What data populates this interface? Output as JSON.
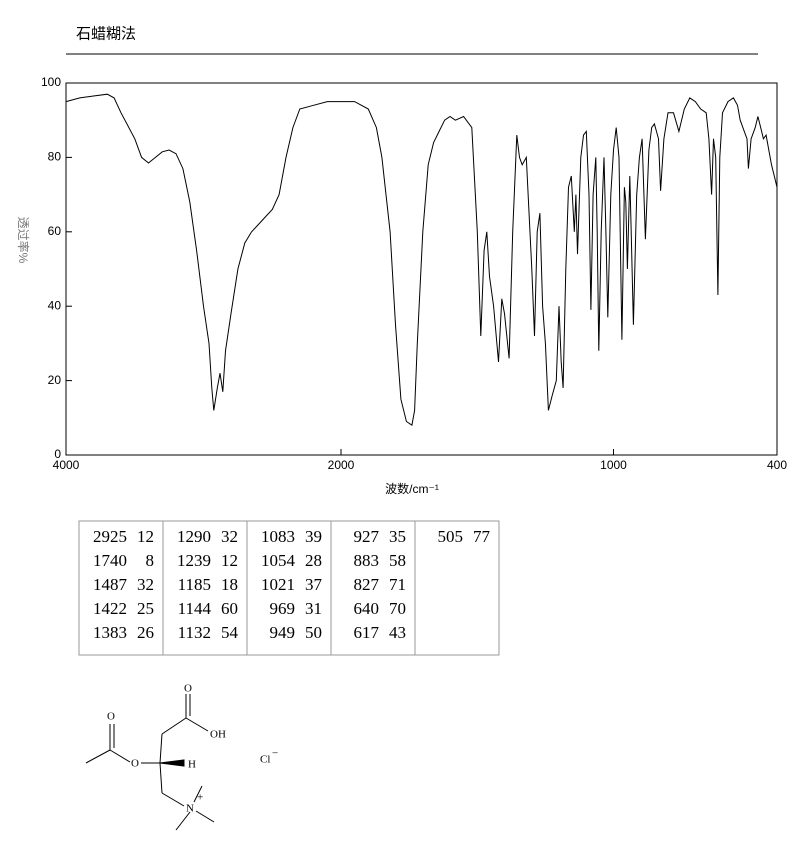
{
  "chart_data": {
    "type": "line",
    "title": "石蜡糊法",
    "x_label": "波数/cm⁻¹",
    "y_label": "透过率%",
    "xlim": [
      4000,
      400
    ],
    "ylim": [
      0,
      100
    ],
    "xticks": [
      4000,
      2000,
      1000,
      400
    ],
    "yticks": [
      0,
      20,
      40,
      60,
      80,
      100
    ],
    "x_scale_break": 2000,
    "color": "#000000",
    "x": [
      4000,
      3900,
      3800,
      3700,
      3650,
      3600,
      3500,
      3450,
      3400,
      3350,
      3300,
      3250,
      3200,
      3150,
      3100,
      3050,
      3000,
      2960,
      2940,
      2925,
      2900,
      2880,
      2860,
      2840,
      2800,
      2750,
      2700,
      2650,
      2600,
      2550,
      2500,
      2450,
      2400,
      2350,
      2300,
      2200,
      2100,
      2000,
      1950,
      1900,
      1870,
      1850,
      1820,
      1800,
      1780,
      1760,
      1740,
      1730,
      1720,
      1700,
      1680,
      1660,
      1640,
      1620,
      1600,
      1580,
      1550,
      1520,
      1500,
      1487,
      1475,
      1465,
      1455,
      1440,
      1422,
      1410,
      1400,
      1383,
      1370,
      1355,
      1345,
      1335,
      1320,
      1300,
      1290,
      1280,
      1270,
      1260,
      1250,
      1239,
      1225,
      1210,
      1200,
      1192,
      1185,
      1175,
      1165,
      1155,
      1144,
      1138,
      1132,
      1120,
      1110,
      1100,
      1090,
      1083,
      1075,
      1065,
      1060,
      1054,
      1045,
      1035,
      1028,
      1021,
      1010,
      1000,
      990,
      980,
      969,
      960,
      955,
      949,
      940,
      935,
      927,
      915,
      905,
      895,
      883,
      870,
      860,
      850,
      835,
      827,
      815,
      800,
      780,
      760,
      740,
      720,
      700,
      680,
      660,
      650,
      640,
      633,
      625,
      617,
      610,
      600,
      580,
      560,
      545,
      535,
      520,
      510,
      505,
      495,
      480,
      470,
      460,
      450,
      440,
      430,
      420,
      410,
      400
    ],
    "values": [
      95,
      96,
      96.5,
      97,
      96,
      92,
      85,
      80,
      78.5,
      80,
      81.5,
      82,
      81,
      77,
      68,
      55,
      40,
      30,
      18,
      12,
      18,
      22,
      17,
      28,
      38,
      50,
      57,
      60,
      62,
      64,
      66,
      70,
      80,
      88,
      93,
      94,
      95,
      95,
      95,
      93,
      88,
      80,
      60,
      35,
      15,
      9,
      8,
      12,
      30,
      60,
      78,
      84,
      87,
      90,
      91,
      90,
      91,
      88,
      60,
      32,
      55,
      60,
      48,
      40,
      25,
      42,
      38,
      26,
      60,
      86,
      80,
      78,
      80,
      50,
      32,
      60,
      65,
      40,
      30,
      12,
      16,
      20,
      40,
      25,
      18,
      50,
      72,
      75,
      60,
      70,
      54,
      80,
      86,
      87,
      70,
      39,
      70,
      80,
      60,
      28,
      60,
      80,
      60,
      37,
      70,
      82,
      88,
      80,
      31,
      72,
      68,
      50,
      75,
      60,
      35,
      70,
      80,
      85,
      58,
      82,
      88,
      89,
      85,
      71,
      85,
      92,
      92,
      87,
      93,
      96,
      95,
      93,
      92,
      85,
      70,
      85,
      80,
      43,
      80,
      92,
      95,
      96,
      94,
      90,
      87,
      85,
      77,
      85,
      88,
      91,
      88,
      85,
      86,
      82,
      78,
      75,
      72
    ]
  },
  "peak_table": {
    "columns": [
      [
        [
          2925,
          12
        ],
        [
          1740,
          8
        ],
        [
          1487,
          32
        ],
        [
          1422,
          25
        ],
        [
          1383,
          26
        ]
      ],
      [
        [
          1290,
          32
        ],
        [
          1239,
          12
        ],
        [
          1185,
          18
        ],
        [
          1144,
          60
        ],
        [
          1132,
          54
        ]
      ],
      [
        [
          1083,
          39
        ],
        [
          1054,
          28
        ],
        [
          1021,
          37
        ],
        [
          969,
          31
        ],
        [
          949,
          50
        ]
      ],
      [
        [
          927,
          35
        ],
        [
          883,
          58
        ],
        [
          827,
          71
        ],
        [
          640,
          70
        ],
        [
          617,
          43
        ]
      ],
      [
        [
          505,
          77
        ]
      ]
    ]
  },
  "structure": {
    "labels": [
      "O",
      "O",
      "OH",
      "O",
      "H",
      "N",
      "+",
      "Cl",
      "−"
    ]
  }
}
